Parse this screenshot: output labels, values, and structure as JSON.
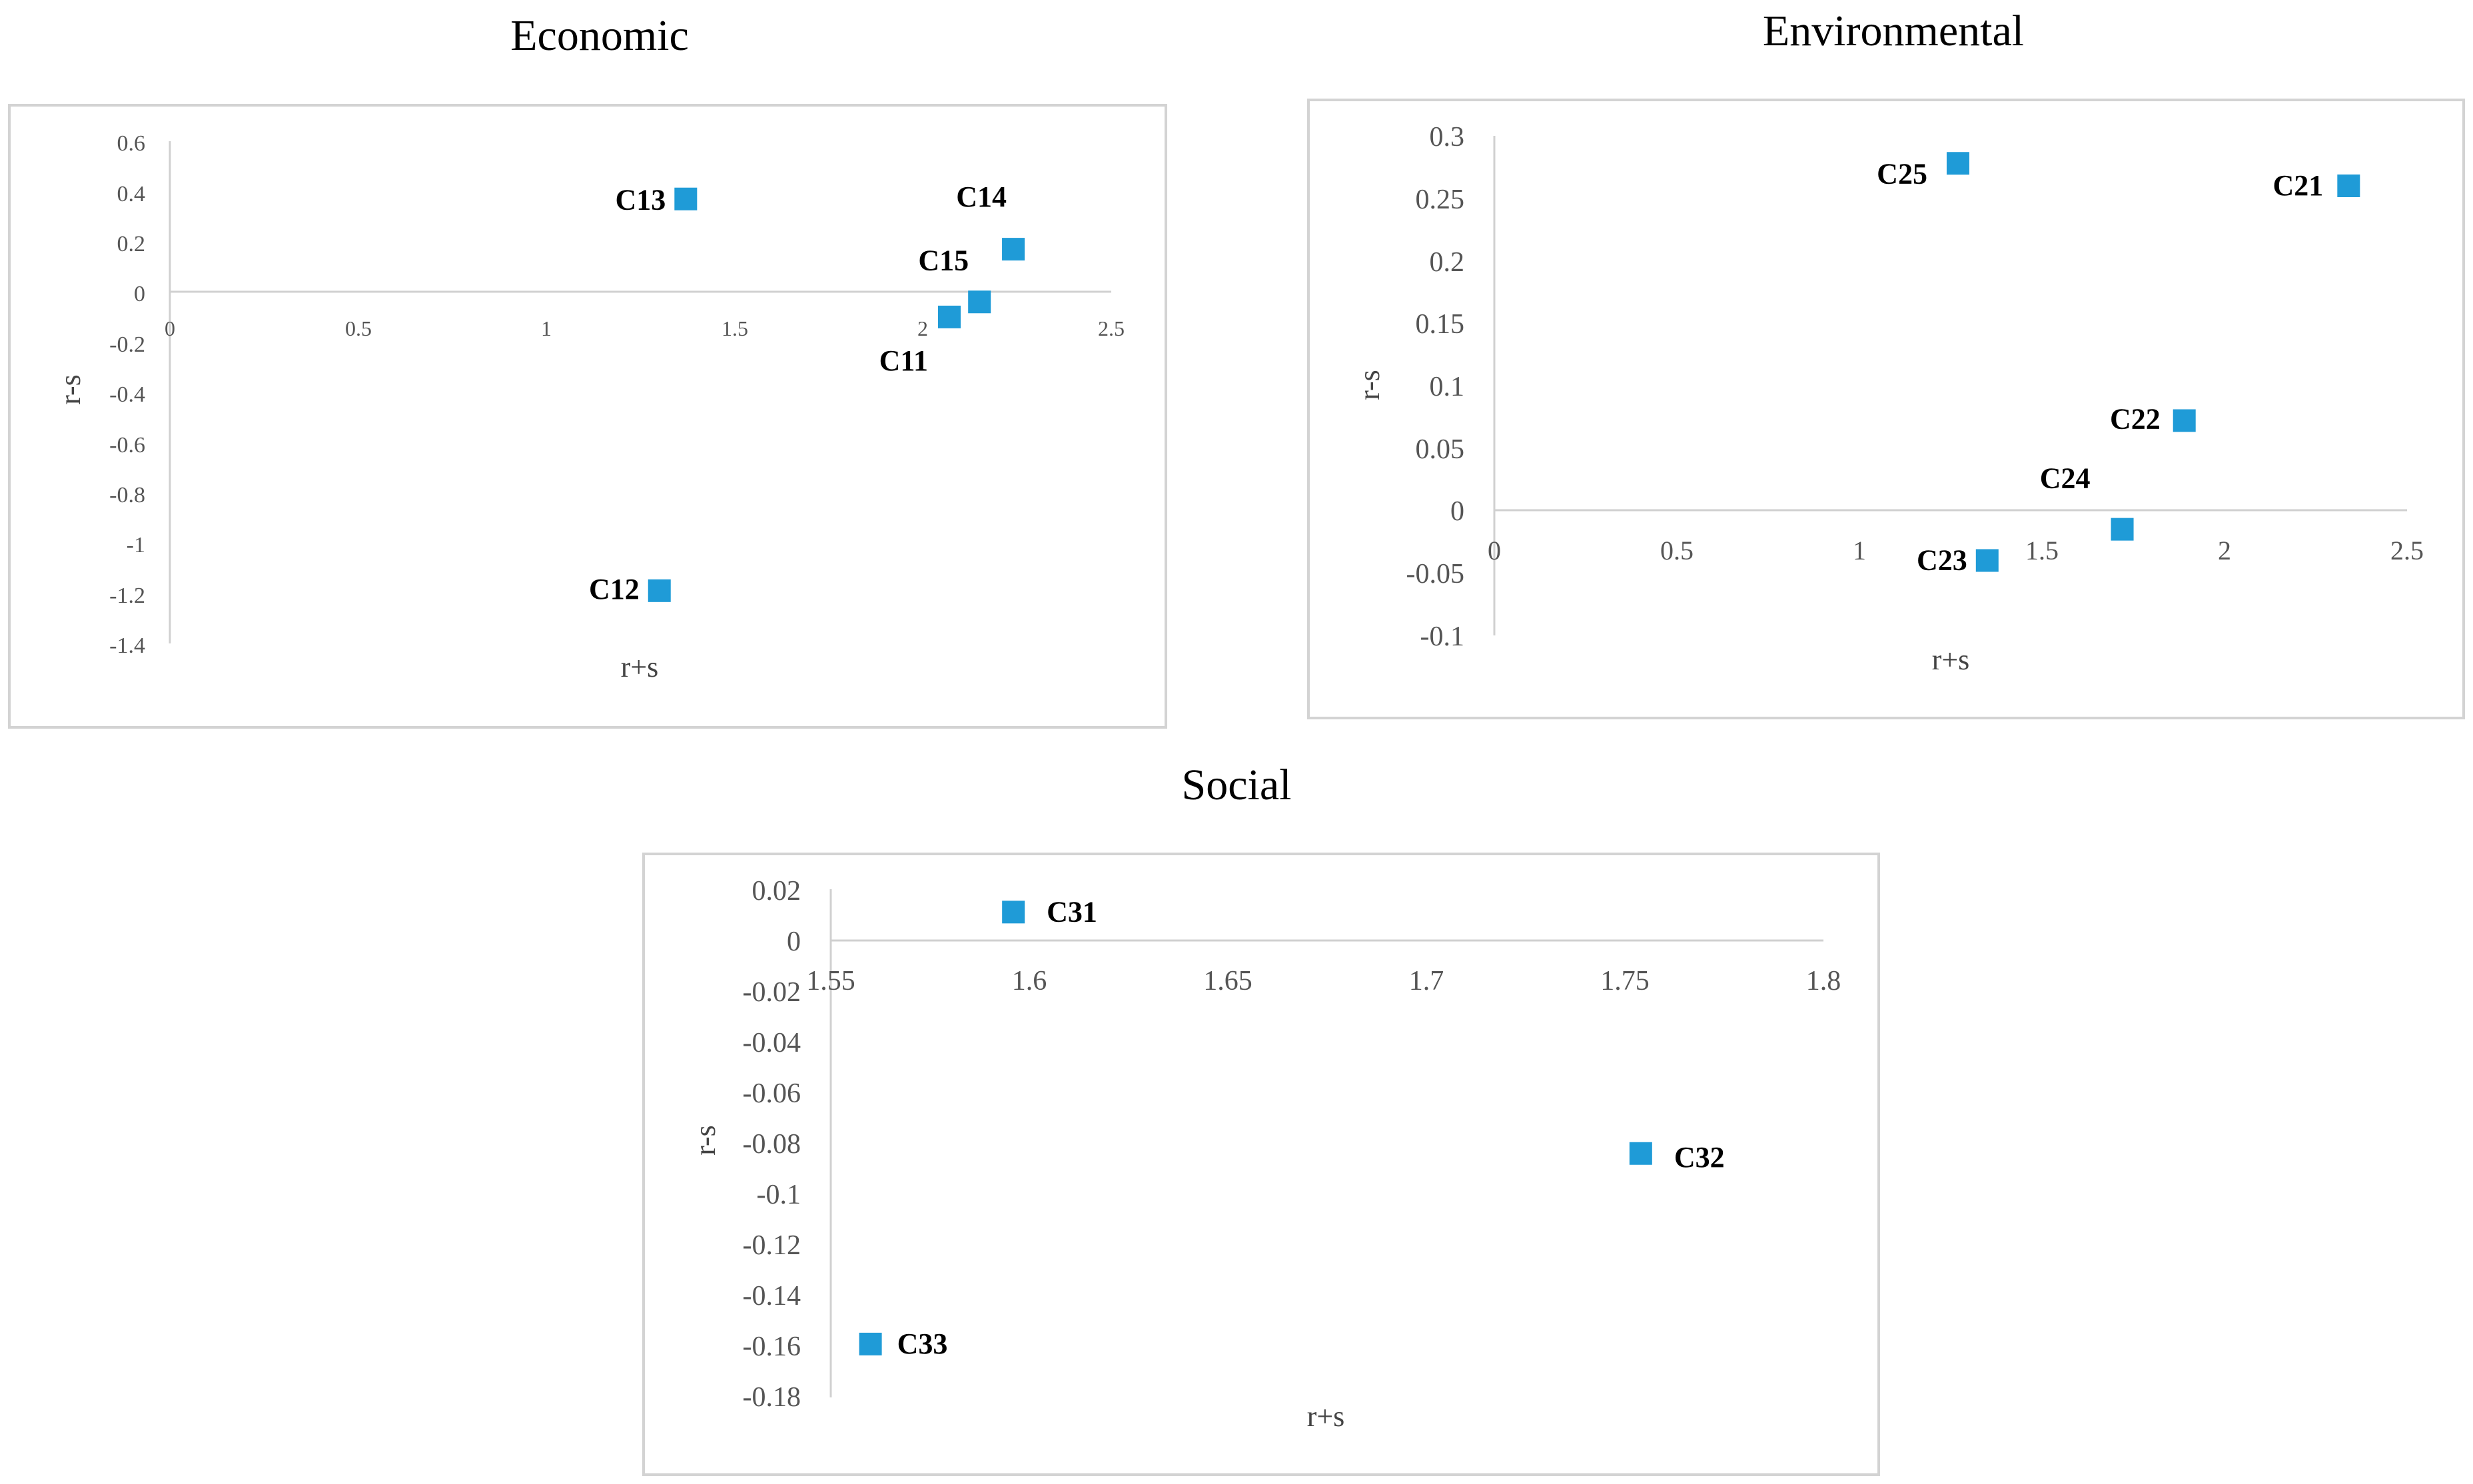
{
  "marker_color": "#1f9bd7",
  "chart_data": [
    {
      "type": "scatter",
      "title": "Economic",
      "xlabel": "r+s",
      "ylabel": "r-s",
      "xlim": [
        0,
        2.5
      ],
      "ylim": [
        -1.4,
        0.6
      ],
      "x_ticks": [
        "0",
        "0.5",
        "1",
        "1.5",
        "2",
        "2.5"
      ],
      "y_ticks": [
        "0.6",
        "0.4",
        "0.2",
        "0",
        "-0.2",
        "-0.4",
        "-0.6",
        "-0.8",
        "-1",
        "-1.2",
        "-1.4"
      ],
      "points": [
        {
          "label": "C11",
          "x": 2.07,
          "y": -0.1
        },
        {
          "label": "C12",
          "x": 1.3,
          "y": -1.19
        },
        {
          "label": "C13",
          "x": 1.37,
          "y": 0.37
        },
        {
          "label": "C14",
          "x": 2.24,
          "y": 0.17
        },
        {
          "label": "C15",
          "x": 2.15,
          "y": -0.04
        }
      ]
    },
    {
      "type": "scatter",
      "title": "Environmental",
      "xlabel": "r+s",
      "ylabel": "r-s",
      "xlim": [
        0,
        2.5
      ],
      "ylim": [
        -0.1,
        0.3
      ],
      "x_ticks": [
        "0",
        "0.5",
        "1",
        "1.5",
        "2",
        "2.5"
      ],
      "y_ticks": [
        "0.3",
        "0.25",
        "0.2",
        "0.15",
        "0.1",
        "0.05",
        "0",
        "-0.05",
        "-0.1"
      ],
      "points": [
        {
          "label": "C21",
          "x": 2.34,
          "y": 0.26
        },
        {
          "label": "C22",
          "x": 1.89,
          "y": 0.072
        },
        {
          "label": "C23",
          "x": 1.35,
          "y": -0.04
        },
        {
          "label": "C24",
          "x": 1.72,
          "y": -0.015
        },
        {
          "label": "C25",
          "x": 1.27,
          "y": 0.278
        }
      ]
    },
    {
      "type": "scatter",
      "title": "Social",
      "xlabel": "r+s",
      "ylabel": "r-s",
      "xlim": [
        1.55,
        1.8
      ],
      "ylim": [
        -0.18,
        0.02
      ],
      "x_ticks": [
        "1.55",
        "1.6",
        "1.65",
        "1.7",
        "1.75",
        "1.8"
      ],
      "y_ticks": [
        "0.02",
        "0",
        "-0.02",
        "-0.04",
        "-0.06",
        "-0.08",
        "-0.1",
        "-0.12",
        "-0.14",
        "-0.16",
        "-0.18"
      ],
      "points": [
        {
          "label": "C31",
          "x": 1.596,
          "y": 0.011
        },
        {
          "label": "C32",
          "x": 1.754,
          "y": -0.084
        },
        {
          "label": "C33",
          "x": 1.56,
          "y": -0.159
        }
      ]
    }
  ]
}
